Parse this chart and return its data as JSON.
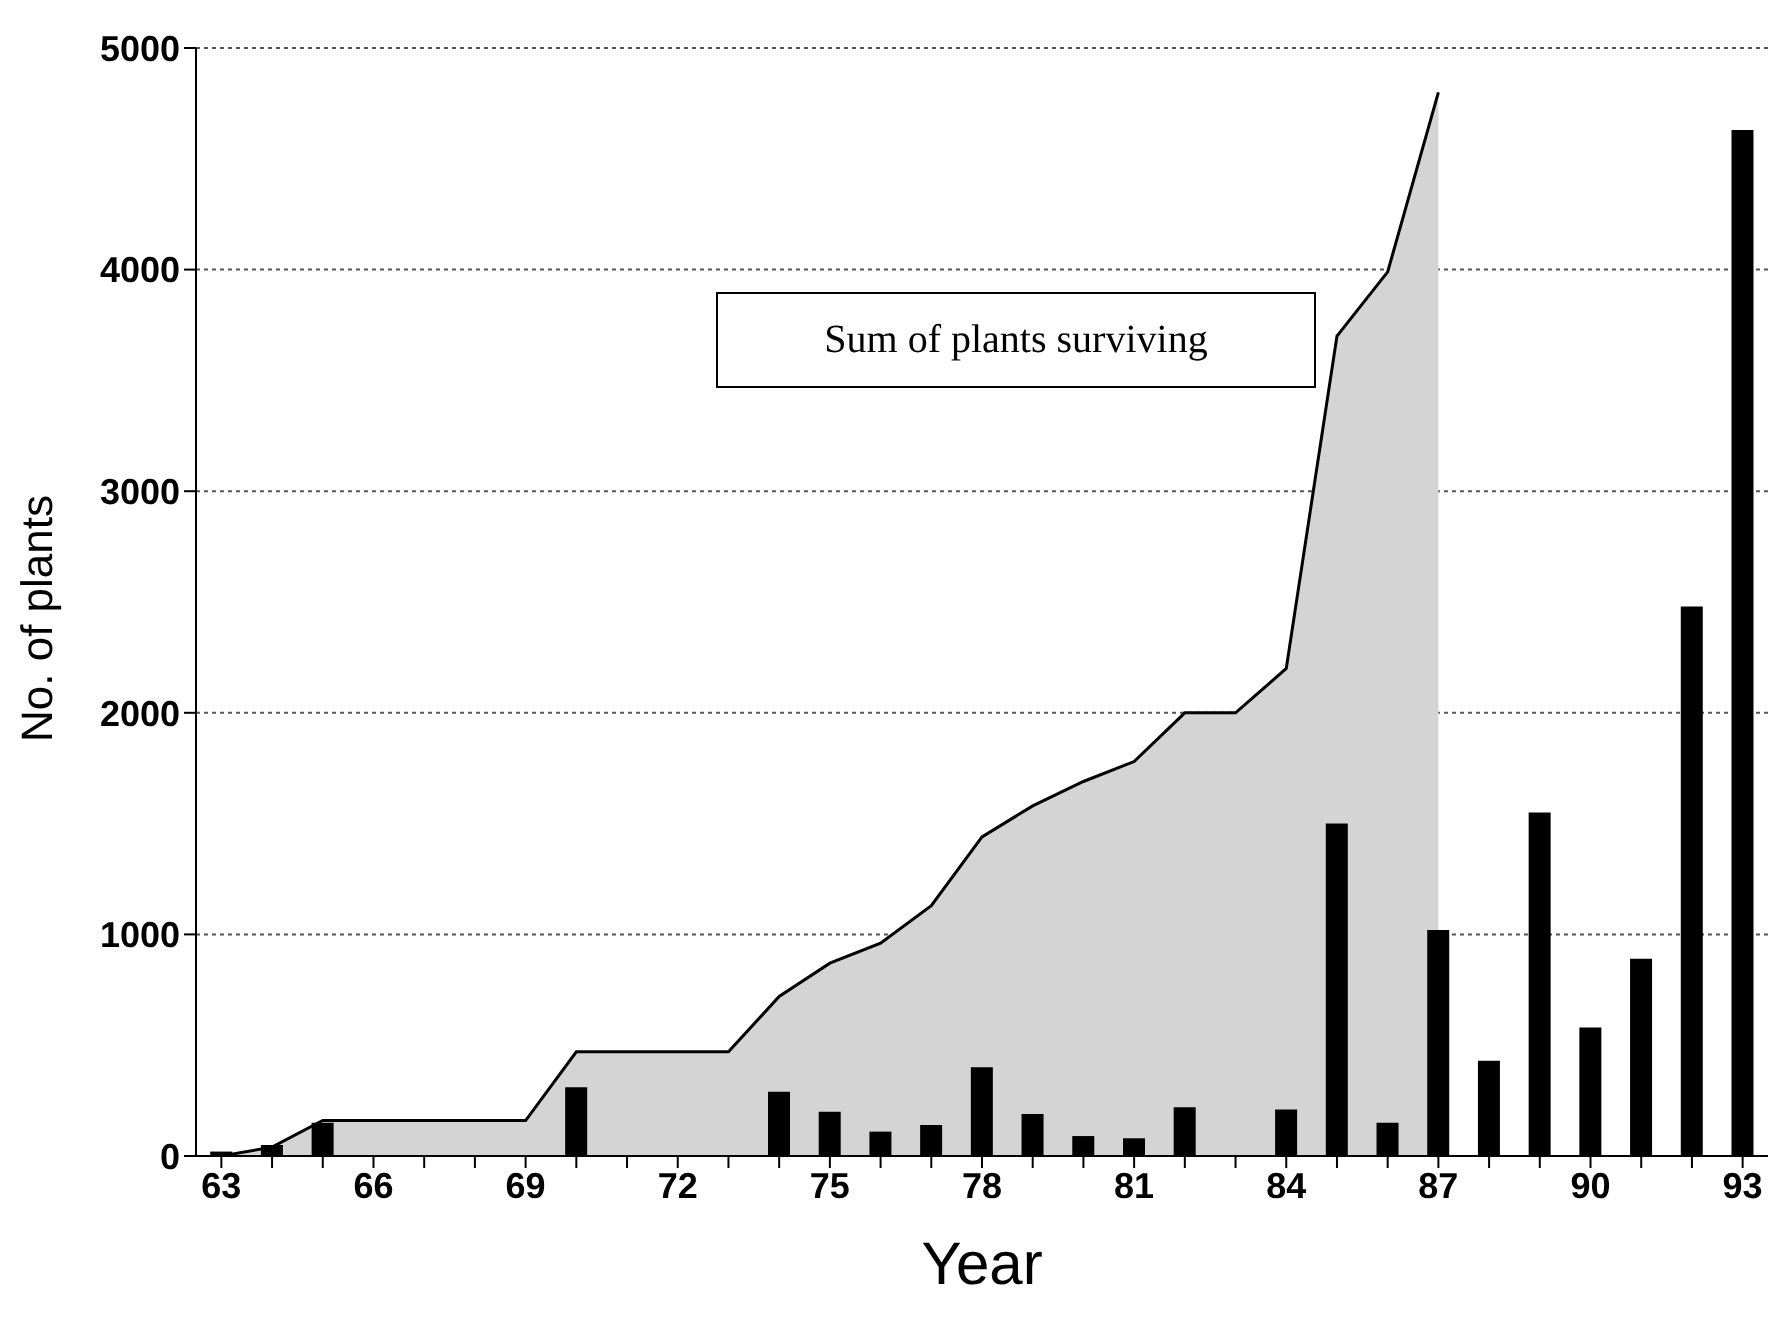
{
  "chart_data": {
    "type": "bar",
    "xlabel": "Year",
    "ylabel": "No. of plants",
    "categories": [
      "63",
      null,
      null,
      "66",
      null,
      null,
      "69",
      null,
      null,
      "72",
      null,
      null,
      "75",
      null,
      null,
      "78",
      null,
      null,
      "81",
      null,
      null,
      "84",
      null,
      null,
      "87",
      null,
      null,
      "90",
      null,
      null,
      "93"
    ],
    "series": [
      {
        "type": "area",
        "color": "#d4d4d4",
        "values": [
          0,
          40,
          160,
          160,
          160,
          160,
          160,
          470,
          470,
          470,
          470,
          720,
          870,
          960,
          1130,
          1440,
          1580,
          1690,
          1780,
          2000,
          2000,
          2200,
          3700,
          3990,
          4800,
          null,
          null,
          null,
          null,
          null,
          null
        ]
      },
      {
        "color": "#000000",
        "values": [
          20,
          50,
          150,
          0,
          0,
          0,
          0,
          310,
          0,
          0,
          0,
          290,
          200,
          110,
          140,
          400,
          190,
          90,
          80,
          220,
          0,
          210,
          1500,
          150,
          1020,
          430,
          1550,
          580,
          890,
          2480,
          4630
        ]
      }
    ],
    "annotations": [
      "Sum of plants surviving"
    ],
    "ylim": [
      0,
      5000
    ],
    "yticks": [
      0,
      1000,
      2000,
      3000,
      4000,
      5000
    ],
    "grid": "y",
    "legend": false
  }
}
